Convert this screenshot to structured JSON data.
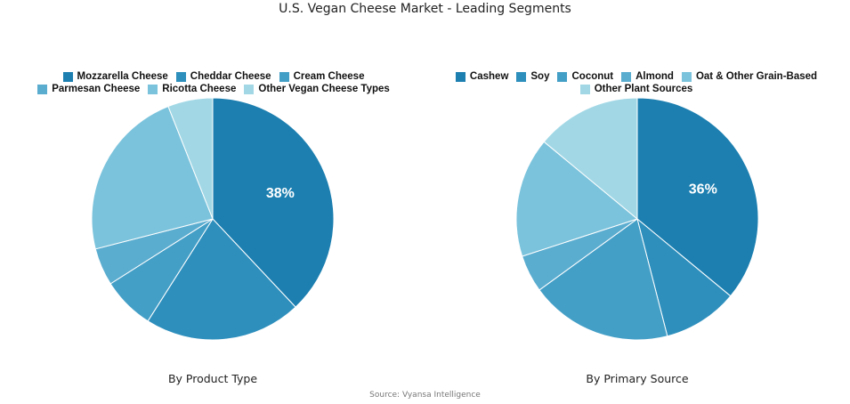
{
  "title": "U.S. Vegan Cheese Market - Leading Segments",
  "source": "Source: Vyansa Intelligence",
  "chart_data": [
    {
      "type": "pie",
      "xlabel": "By Product Type",
      "legend_position": "top",
      "categories": [
        "Mozzarella Cheese",
        "Cheddar Cheese",
        "Cream Cheese",
        "Parmesan Cheese",
        "Ricotta Cheese",
        "Other Vegan Cheese Types"
      ],
      "values": [
        38,
        21,
        7,
        5,
        23,
        6
      ],
      "colors": [
        "#1c7fb0",
        "#2e8fbd",
        "#449fc7",
        "#5badd0",
        "#7bc3dc",
        "#a2d8e6"
      ],
      "data_labels": [
        "38%",
        "",
        "",
        "",
        "",
        ""
      ]
    },
    {
      "type": "pie",
      "xlabel": "By Primary Source",
      "legend_position": "top",
      "categories": [
        "Cashew",
        "Soy",
        "Coconut",
        "Almond",
        "Oat & Other Grain-Based",
        "Other Plant Sources"
      ],
      "values": [
        36,
        10,
        19,
        5,
        16,
        14
      ],
      "colors": [
        "#1c7fb0",
        "#2e8fbd",
        "#449fc7",
        "#5badd0",
        "#7bc3dc",
        "#a2d8e6"
      ],
      "data_labels": [
        "36%",
        "",
        "",
        "",
        "",
        ""
      ]
    }
  ]
}
